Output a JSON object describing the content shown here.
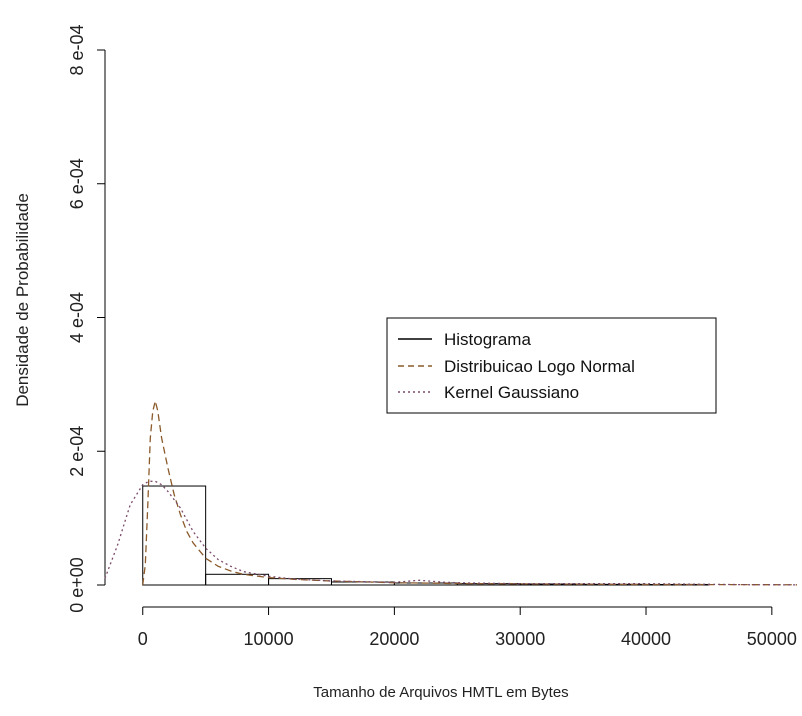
{
  "chart_data": {
    "type": "histogram",
    "title": "",
    "xlabel": "Tamanho de Arquivos HMTL em Bytes",
    "ylabel": "Densidade de Probabilidade",
    "xlim": [
      -3000,
      52000
    ],
    "ylim": [
      0,
      0.0008
    ],
    "x_ticks": [
      0,
      10000,
      20000,
      30000,
      40000,
      50000
    ],
    "x_tick_labels": [
      "0",
      "10000",
      "20000",
      "30000",
      "40000",
      "50000"
    ],
    "y_ticks": [
      0,
      0.0002,
      0.0004,
      0.0006,
      0.0008
    ],
    "y_tick_labels": [
      "0 e+00",
      "2 e-04",
      "4 e-04",
      "6 e-04",
      "8 e-04"
    ],
    "histogram": {
      "name": "Histograma",
      "bin_edges": [
        0,
        5000,
        10000,
        15000,
        20000,
        25000,
        30000,
        35000,
        40000,
        45000
      ],
      "densities": [
        0.000148,
        1.6e-05,
        9.5e-06,
        4.5e-06,
        3e-06,
        2e-06,
        1.5e-06,
        1e-06,
        8e-07
      ]
    },
    "series": [
      {
        "name": "Distribuicao Logo Normal",
        "style": "dashed",
        "color": "#8b5a2b",
        "x": [
          0,
          200,
          400,
          600,
          800,
          1000,
          1200,
          1500,
          2000,
          2500,
          3000,
          3500,
          4000,
          5000,
          6000,
          7000,
          8000,
          10000,
          12000,
          15000,
          20000,
          25000,
          30000,
          40000,
          50000,
          52000
        ],
        "y": [
          0,
          3e-05,
          0.00012,
          0.00022,
          0.00026,
          0.000275,
          0.00026,
          0.00022,
          0.000175,
          0.000135,
          0.000105,
          8e-05,
          6.3e-05,
          4e-05,
          2.8e-05,
          2.1e-05,
          1.6e-05,
          1.1e-05,
          8.5e-06,
          6e-06,
          3.5e-06,
          2.3e-06,
          1.6e-06,
          8e-07,
          4e-07,
          3e-07
        ]
      },
      {
        "name": "Kernel Gaussiano",
        "style": "dotted",
        "color": "#7a4a6a",
        "x": [
          -3000,
          -2000,
          -1000,
          0,
          500,
          1000,
          1500,
          2000,
          3000,
          4000,
          5000,
          6000,
          7000,
          8000,
          10000,
          12000,
          15000,
          20000,
          22000,
          24000,
          26000,
          30000,
          40000,
          45000,
          48000,
          52000
        ],
        "y": [
          1e-05,
          6e-05,
          0.00012,
          0.00015,
          0.000155,
          0.000155,
          0.00015,
          0.00014,
          0.000115,
          8e-05,
          5.5e-05,
          3.8e-05,
          2.8e-05,
          2e-05,
          1.3e-05,
          9e-06,
          6e-06,
          4e-06,
          7e-06,
          4e-06,
          3e-06,
          2e-06,
          2e-06,
          1e-06,
          5e-07,
          2e-07
        ]
      }
    ],
    "legend": {
      "position": "center-right",
      "entries": [
        {
          "label": "Histograma",
          "style": "solid",
          "color": "#000000"
        },
        {
          "label": "Distribuicao Logo Normal",
          "style": "dashed",
          "color": "#8b5a2b"
        },
        {
          "label": "Kernel Gaussiano",
          "style": "dotted",
          "color": "#7a4a6a"
        }
      ]
    },
    "grid": false
  }
}
